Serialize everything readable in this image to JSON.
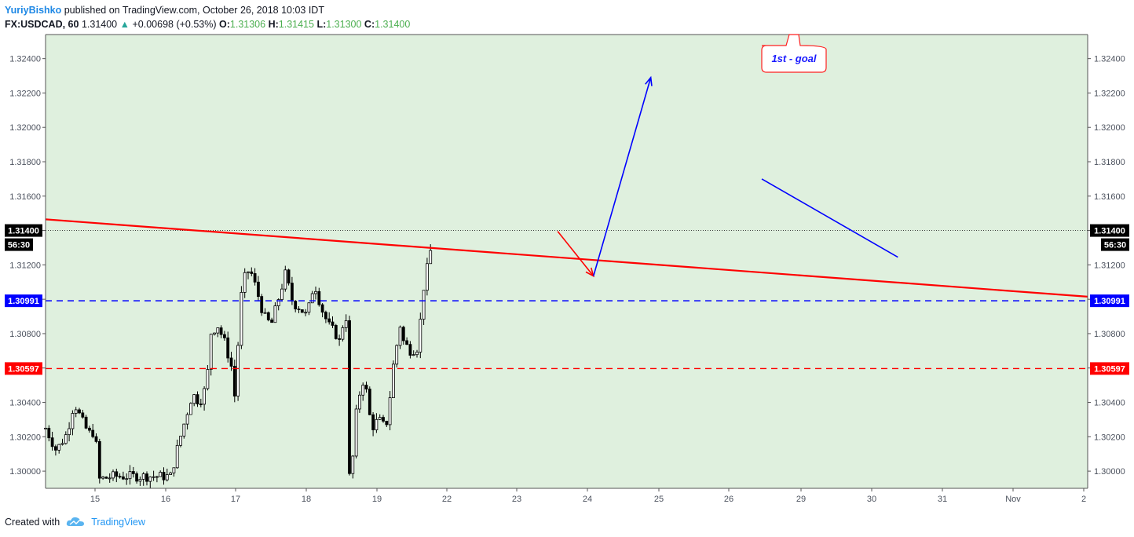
{
  "header": {
    "author": "YuriyBishko",
    "published": "published on TradingView.com, October 26, 2018 10:03 IDT",
    "symbol": "FX:USDCAD, 60",
    "last": "1.31400",
    "change": "+0.00698 (+0.53%)",
    "o_label": "O:",
    "o_value": "1.31306",
    "h_label": "H:",
    "h_value": "1.31415",
    "l_label": "L:",
    "l_value": "1.31300",
    "c_label": "C:",
    "c_value": "1.31400"
  },
  "footer": {
    "created": "Created with",
    "brand": "TradingView"
  },
  "colors": {
    "background": "#dff0de",
    "trendline": "#ff0000",
    "support_blue": "#0000ff",
    "support_red": "#ff0000",
    "candle": "#000000",
    "annotation_text": "#1a1aff"
  },
  "chart_data": {
    "type": "candlestick",
    "instrument": "FX:USDCAD",
    "timeframe": "60",
    "ylim": [
      1.299,
      1.3254
    ],
    "y_ticks": [
      "1.30000",
      "1.30200",
      "1.30400",
      "1.30600",
      "1.30800",
      "1.31000",
      "1.31200",
      "1.31400",
      "1.31600",
      "1.31800",
      "1.32000",
      "1.32200",
      "1.32400"
    ],
    "x_ticks": [
      "15",
      "16",
      "17",
      "18",
      "19",
      "22",
      "23",
      "24",
      "25",
      "26",
      "29",
      "30",
      "31",
      "Nov",
      "2"
    ],
    "price_badge": {
      "value": "1.31400",
      "countdown": "56:30"
    },
    "levels": [
      {
        "label": "1.30991",
        "price": 1.30991,
        "color": "#0000ff",
        "style": "dashed"
      },
      {
        "label": "1.30597",
        "price": 1.30597,
        "color": "#ff0000",
        "style": "dashed"
      }
    ],
    "trendline": {
      "from": {
        "x": 14.3,
        "y": 1.31465
      },
      "to": {
        "x": 43.4,
        "y": 1.31015
      }
    },
    "annotations": [
      {
        "type": "arrow",
        "color": "#ff0000",
        "from": {
          "x": 28.6,
          "y": 1.31395
        },
        "to": {
          "x": 29.6,
          "y": 1.31135
        }
      },
      {
        "type": "arrow",
        "color": "#0000ff",
        "from": {
          "x": 29.6,
          "y": 1.31135
        },
        "to": {
          "x": 31.2,
          "y": 1.3229
        }
      },
      {
        "type": "line",
        "color": "#0000ff",
        "from": {
          "x": 34.3,
          "y": 1.317
        },
        "to": {
          "x": 38.1,
          "y": 1.31245
        }
      },
      {
        "type": "callout",
        "text": "1st - goal"
      }
    ],
    "closes": [
      {
        "d": 14.3,
        "c": 1.3025
      },
      {
        "d": 14.6,
        "c": 1.3012
      },
      {
        "d": 14.9,
        "c": 1.3022
      },
      {
        "d": 15.1,
        "c": 1.304
      },
      {
        "d": 15.3,
        "c": 1.303
      },
      {
        "d": 15.5,
        "c": 1.3022
      },
      {
        "d": 15.7,
        "c": 1.3023
      },
      {
        "d": 15.75,
        "c": 1.2995
      },
      {
        "d": 16.2,
        "c": 1.2997
      },
      {
        "d": 17.8,
        "c": 1.2997
      },
      {
        "d": 18.0,
        "c": 1.3015
      },
      {
        "d": 18.2,
        "c": 1.303
      },
      {
        "d": 18.4,
        "c": 1.3045
      },
      {
        "d": 18.6,
        "c": 1.304
      },
      {
        "d": 18.8,
        "c": 1.305
      },
      {
        "d": 18.9,
        "c": 1.308
      },
      {
        "d": 19.1,
        "c": 1.3085
      },
      {
        "d": 19.3,
        "c": 1.3075
      },
      {
        "d": 19.5,
        "c": 1.306
      },
      {
        "d": 19.6,
        "c": 1.304
      },
      {
        "d": 19.7,
        "c": 1.3085
      },
      {
        "d": 19.8,
        "c": 1.311
      },
      {
        "d": 20.0,
        "c": 1.3118
      },
      {
        "d": 20.2,
        "c": 1.3105
      },
      {
        "d": 20.4,
        "c": 1.309
      },
      {
        "d": 20.6,
        "c": 1.3085
      },
      {
        "d": 20.8,
        "c": 1.31
      },
      {
        "d": 21.0,
        "c": 1.3115
      },
      {
        "d": 21.2,
        "c": 1.3098
      },
      {
        "d": 21.4,
        "c": 1.3095
      },
      {
        "d": 21.6,
        "c": 1.309
      },
      {
        "d": 21.8,
        "c": 1.311
      },
      {
        "d": 22.0,
        "c": 1.3095
      },
      {
        "d": 22.2,
        "c": 1.3085
      },
      {
        "d": 22.4,
        "c": 1.308
      },
      {
        "d": 22.5,
        "c": 1.3075
      },
      {
        "d": 22.6,
        "c": 1.3085
      },
      {
        "d": 22.7,
        "c": 1.309
      },
      {
        "d": 22.75,
        "c": 1.2995
      },
      {
        "d": 22.85,
        "c": 1.3
      },
      {
        "d": 23.0,
        "c": 1.304
      },
      {
        "d": 23.2,
        "c": 1.3055
      },
      {
        "d": 23.4,
        "c": 1.3025
      },
      {
        "d": 23.6,
        "c": 1.303
      },
      {
        "d": 23.8,
        "c": 1.3025
      },
      {
        "d": 23.9,
        "c": 1.304
      },
      {
        "d": 24.0,
        "c": 1.306
      },
      {
        "d": 24.2,
        "c": 1.3085
      },
      {
        "d": 24.3,
        "c": 1.3075
      },
      {
        "d": 24.5,
        "c": 1.307
      },
      {
        "d": 24.7,
        "c": 1.3072
      },
      {
        "d": 24.8,
        "c": 1.3095
      },
      {
        "d": 24.9,
        "c": 1.3115
      },
      {
        "d": 25.0,
        "c": 1.312
      },
      {
        "d": 25.05,
        "c": 1.3128
      },
      {
        "d": 25.1,
        "c": 1.314
      }
    ]
  }
}
